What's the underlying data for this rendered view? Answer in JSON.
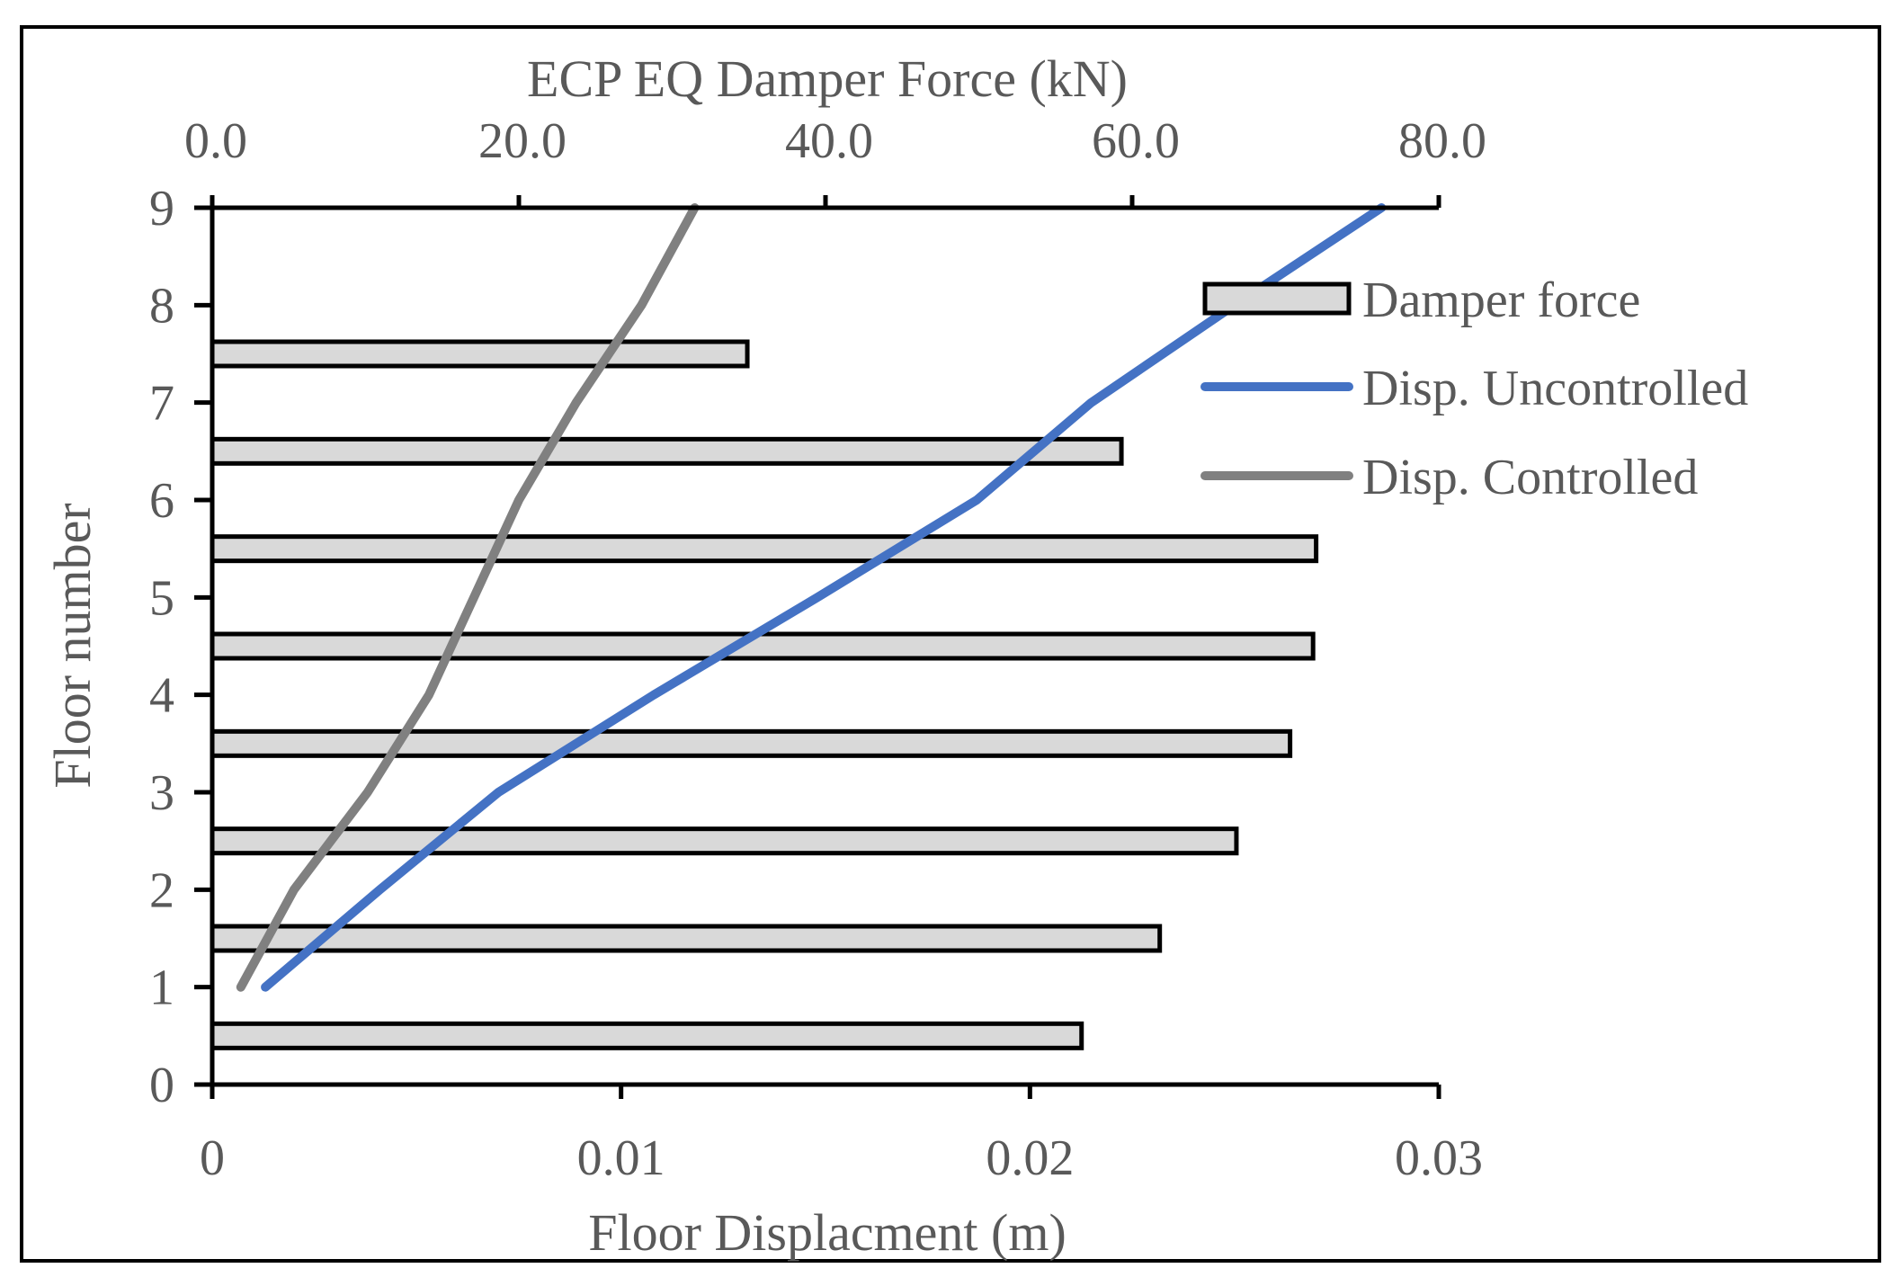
{
  "chart_data": {
    "type": "bar+line",
    "title": "",
    "top_axis": {
      "label": "ECP EQ Damper Force (kN)",
      "range": [
        0,
        80
      ],
      "ticks": [
        "0.0",
        "20.0",
        "40.0",
        "60.0",
        "80.0"
      ],
      "tick_values": [
        0,
        20,
        40,
        60,
        80
      ]
    },
    "bottom_axis": {
      "label": "Floor Displacment (m)",
      "range": [
        0,
        0.03
      ],
      "ticks": [
        "0",
        "0.01",
        "0.02",
        "0.03"
      ],
      "tick_values": [
        0,
        0.01,
        0.02,
        0.03
      ]
    },
    "y_axis": {
      "label": "Floor number",
      "range": [
        0,
        9
      ],
      "ticks": [
        "0",
        "1",
        "2",
        "3",
        "4",
        "5",
        "6",
        "7",
        "8",
        "9"
      ]
    },
    "bars": {
      "name": "Damper force",
      "axis": "top",
      "y_positions": [
        0.5,
        1.5,
        2.5,
        3.5,
        4.5,
        5.5,
        6.5,
        7.5
      ],
      "values": [
        56.7,
        61.8,
        66.8,
        70.3,
        71.8,
        72.0,
        59.3,
        34.9
      ],
      "fill": "#d9d9d9",
      "stroke": "#000000"
    },
    "series": [
      {
        "name": "Disp. Uncontrolled",
        "axis": "bottom",
        "color": "#4472c4",
        "floors": [
          1,
          2,
          3,
          4,
          5,
          6,
          7,
          8,
          9
        ],
        "values": [
          0.0013,
          0.0041,
          0.007,
          0.0108,
          0.0148,
          0.0187,
          0.0215,
          0.025,
          0.0286
        ]
      },
      {
        "name": "Disp. Controlled",
        "axis": "bottom",
        "color": "#808080",
        "floors": [
          1,
          2,
          3,
          4,
          5,
          6,
          7,
          8,
          9
        ],
        "values": [
          0.0007,
          0.002,
          0.0038,
          0.0053,
          0.0064,
          0.0075,
          0.0089,
          0.0105,
          0.0118
        ]
      }
    ],
    "legend": {
      "position": "top-right",
      "items": [
        "Damper force",
        "Disp. Uncontrolled",
        "Disp. Controlled"
      ]
    },
    "grid": false
  }
}
